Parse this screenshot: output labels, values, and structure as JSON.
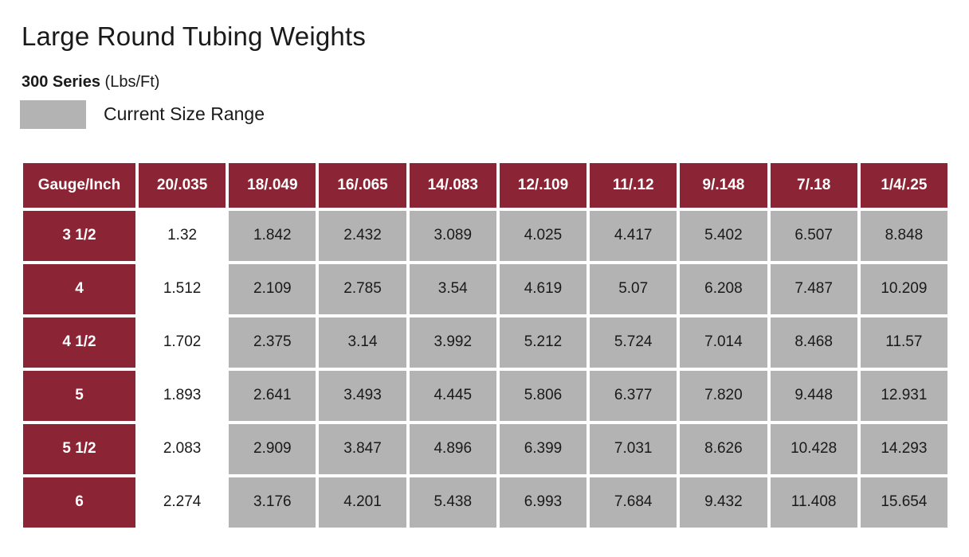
{
  "page": {
    "title": "Large Round Tubing Weights",
    "series_label": "300 Series",
    "series_unit": "(Lbs/Ft)",
    "legend_label": "Current Size Range"
  },
  "colors": {
    "header_background": "#8b2434",
    "highlight_gray": "#b3b3b3",
    "header_text": "#ffffff",
    "body_text": "#1a1a1a"
  },
  "chart_data": {
    "type": "table",
    "title": "Large Round Tubing Weights",
    "subtitle": "300 Series (Lbs/Ft)",
    "legend": [
      {
        "swatch_color": "#b3b3b3",
        "label": "Current Size Range"
      }
    ],
    "columns": [
      "Gauge/Inch",
      "20/.035",
      "18/.049",
      "16/.065",
      "14/.083",
      "12/.109",
      "11/.12",
      "9/.148",
      "7/.18",
      "1/4/.25"
    ],
    "col_highlight": [
      false,
      true,
      true,
      true,
      true,
      true,
      true,
      true,
      true
    ],
    "rows": [
      {
        "label": "3 1/2",
        "values": [
          "1.32",
          "1.842",
          "2.432",
          "3.089",
          "4.025",
          "4.417",
          "5.402",
          "6.507",
          "8.848"
        ]
      },
      {
        "label": "4",
        "values": [
          "1.512",
          "2.109",
          "2.785",
          "3.54",
          "4.619",
          "5.07",
          "6.208",
          "7.487",
          "10.209"
        ]
      },
      {
        "label": "4 1/2",
        "values": [
          "1.702",
          "2.375",
          "3.14",
          "3.992",
          "5.212",
          "5.724",
          "7.014",
          "8.468",
          "11.57"
        ]
      },
      {
        "label": "5",
        "values": [
          "1.893",
          "2.641",
          "3.493",
          "4.445",
          "5.806",
          "6.377",
          "7.820",
          "9.448",
          "12.931"
        ]
      },
      {
        "label": "5 1/2",
        "values": [
          "2.083",
          "2.909",
          "3.847",
          "4.896",
          "6.399",
          "7.031",
          "8.626",
          "10.428",
          "14.293"
        ]
      },
      {
        "label": "6",
        "values": [
          "2.274",
          "3.176",
          "4.201",
          "5.438",
          "6.993",
          "7.684",
          "9.432",
          "11.408",
          "15.654"
        ]
      }
    ]
  }
}
